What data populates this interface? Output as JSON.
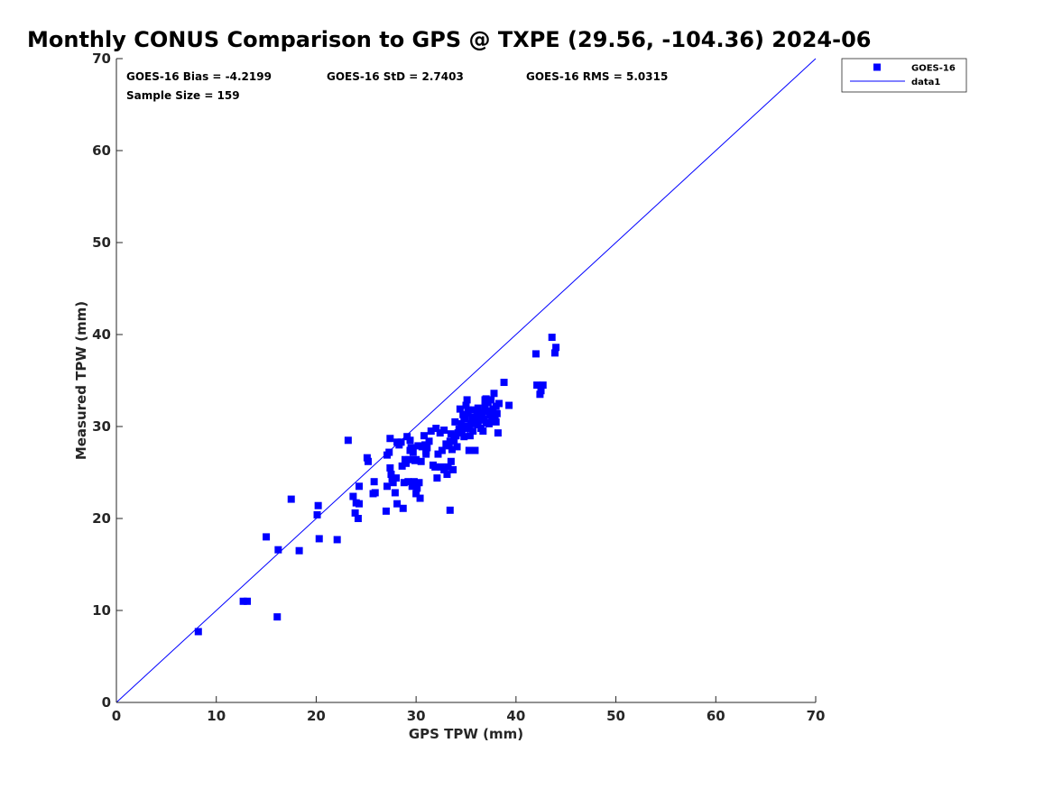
{
  "chart_data": {
    "type": "scatter",
    "title": "Monthly CONUS Comparison to GPS @ TXPE (29.56, -104.36) 2024-06",
    "xlabel": "GPS TPW (mm)",
    "ylabel": "Measured TPW (mm)",
    "xlim": [
      0,
      70
    ],
    "ylim": [
      0,
      70
    ],
    "xticks": [
      0,
      10,
      20,
      30,
      40,
      50,
      60,
      70
    ],
    "yticks": [
      0,
      10,
      20,
      30,
      40,
      50,
      60,
      70
    ],
    "grid": false,
    "legend_position": "top-right",
    "stats": [
      "GOES-16 Bias = -4.2199",
      "GOES-16 StD = 2.7403",
      "GOES-16 RMS = 5.0315",
      "Sample Size = 159"
    ],
    "series": [
      {
        "name": "GOES-16",
        "kind": "scatter",
        "marker": "square",
        "color": "#0000ff",
        "points": [
          [
            8.2,
            7.7
          ],
          [
            12.7,
            11.0
          ],
          [
            13.1,
            11.0
          ],
          [
            15.0,
            18.0
          ],
          [
            16.2,
            16.6
          ],
          [
            16.1,
            9.3
          ],
          [
            17.5,
            22.1
          ],
          [
            18.3,
            16.5
          ],
          [
            20.2,
            21.4
          ],
          [
            20.1,
            20.4
          ],
          [
            20.3,
            17.8
          ],
          [
            22.1,
            17.7
          ],
          [
            23.2,
            28.5
          ],
          [
            23.7,
            22.4
          ],
          [
            23.9,
            20.6
          ],
          [
            24.0,
            21.7
          ],
          [
            24.3,
            21.6
          ],
          [
            24.2,
            20.0
          ],
          [
            24.3,
            23.5
          ],
          [
            25.1,
            26.6
          ],
          [
            25.2,
            26.2
          ],
          [
            25.7,
            22.7
          ],
          [
            25.9,
            22.8
          ],
          [
            25.8,
            24.0
          ],
          [
            27.0,
            20.8
          ],
          [
            27.1,
            23.5
          ],
          [
            27.1,
            26.9
          ],
          [
            27.3,
            27.2
          ],
          [
            27.4,
            28.7
          ],
          [
            27.4,
            25.5
          ],
          [
            27.5,
            24.8
          ],
          [
            27.6,
            24.3
          ],
          [
            27.7,
            23.9
          ],
          [
            27.9,
            22.8
          ],
          [
            28.0,
            24.4
          ],
          [
            28.1,
            21.6
          ],
          [
            28.1,
            28.3
          ],
          [
            28.3,
            28.0
          ],
          [
            28.5,
            28.3
          ],
          [
            28.6,
            25.7
          ],
          [
            28.7,
            21.1
          ],
          [
            28.8,
            23.9
          ],
          [
            29.0,
            26.0
          ],
          [
            29.1,
            28.9
          ],
          [
            29.2,
            24.0
          ],
          [
            29.3,
            26.4
          ],
          [
            29.4,
            28.5
          ],
          [
            29.5,
            27.7
          ],
          [
            29.6,
            23.5
          ],
          [
            29.7,
            27.2
          ],
          [
            29.8,
            24.0
          ],
          [
            29.9,
            26.3
          ],
          [
            30.0,
            22.7
          ],
          [
            30.1,
            23.3
          ],
          [
            30.2,
            27.9
          ],
          [
            30.3,
            23.9
          ],
          [
            30.4,
            22.2
          ],
          [
            30.5,
            26.2
          ],
          [
            30.6,
            27.8
          ],
          [
            30.8,
            29.0
          ],
          [
            30.9,
            28.0
          ],
          [
            31.0,
            27.3
          ],
          [
            31.1,
            27.7
          ],
          [
            31.3,
            28.4
          ],
          [
            31.5,
            29.5
          ],
          [
            31.7,
            25.8
          ],
          [
            31.9,
            25.6
          ],
          [
            32.0,
            29.8
          ],
          [
            32.1,
            24.4
          ],
          [
            32.2,
            27.0
          ],
          [
            32.4,
            29.3
          ],
          [
            32.5,
            25.6
          ],
          [
            32.6,
            27.4
          ],
          [
            32.8,
            25.3
          ],
          [
            33.0,
            28.1
          ],
          [
            33.1,
            24.8
          ],
          [
            33.2,
            25.6
          ],
          [
            33.3,
            27.9
          ],
          [
            33.4,
            28.4
          ],
          [
            33.4,
            20.9
          ],
          [
            33.5,
            29.2
          ],
          [
            33.5,
            26.2
          ],
          [
            33.6,
            27.5
          ],
          [
            33.7,
            25.3
          ],
          [
            33.8,
            28.5
          ],
          [
            33.9,
            30.5
          ],
          [
            34.0,
            29.0
          ],
          [
            34.1,
            27.8
          ],
          [
            34.2,
            29.3
          ],
          [
            34.3,
            29.7
          ],
          [
            34.4,
            31.9
          ],
          [
            34.5,
            30.3
          ],
          [
            34.6,
            29.6
          ],
          [
            34.7,
            31.3
          ],
          [
            34.8,
            28.9
          ],
          [
            34.9,
            30.8
          ],
          [
            35.0,
            32.3
          ],
          [
            35.0,
            30.0
          ],
          [
            35.1,
            32.9
          ],
          [
            35.2,
            31.5
          ],
          [
            35.3,
            29.8
          ],
          [
            35.3,
            27.4
          ],
          [
            35.4,
            29.0
          ],
          [
            35.5,
            30.3
          ],
          [
            35.6,
            31.0
          ],
          [
            35.7,
            29.5
          ],
          [
            35.8,
            31.8
          ],
          [
            35.9,
            27.4
          ],
          [
            36.0,
            30.8
          ],
          [
            36.1,
            31.3
          ],
          [
            36.2,
            30.2
          ],
          [
            36.3,
            30.7
          ],
          [
            36.4,
            31.5
          ],
          [
            36.5,
            29.8
          ],
          [
            36.6,
            31.0
          ],
          [
            36.7,
            29.5
          ],
          [
            36.8,
            30.8
          ],
          [
            36.9,
            32.2
          ],
          [
            37.0,
            33.0
          ],
          [
            37.0,
            30.4
          ],
          [
            37.1,
            31.6
          ],
          [
            37.2,
            32.6
          ],
          [
            37.3,
            30.3
          ],
          [
            37.4,
            31.2
          ],
          [
            37.5,
            32.9
          ],
          [
            37.6,
            30.6
          ],
          [
            37.7,
            31.9
          ],
          [
            37.8,
            33.6
          ],
          [
            37.9,
            31.0
          ],
          [
            38.0,
            32.2
          ],
          [
            38.0,
            30.5
          ],
          [
            38.1,
            31.4
          ],
          [
            38.2,
            29.3
          ],
          [
            38.3,
            32.5
          ],
          [
            38.8,
            34.8
          ],
          [
            39.3,
            32.3
          ],
          [
            42.0,
            37.9
          ],
          [
            42.1,
            34.5
          ],
          [
            42.4,
            33.5
          ],
          [
            42.5,
            33.9
          ],
          [
            42.7,
            34.5
          ],
          [
            43.6,
            39.7
          ],
          [
            43.9,
            38.0
          ],
          [
            44.0,
            38.6
          ],
          [
            32.8,
            29.6
          ],
          [
            36.9,
            32.9
          ],
          [
            35.2,
            31.8
          ],
          [
            31.0,
            27.0
          ],
          [
            30.0,
            26.4
          ],
          [
            34.8,
            30.9
          ],
          [
            37.5,
            31.7
          ],
          [
            36.2,
            32.0
          ],
          [
            33.9,
            29.0
          ],
          [
            29.4,
            27.4
          ],
          [
            28.9,
            26.4
          ]
        ]
      },
      {
        "name": "data1",
        "kind": "line",
        "color": "#0000ff",
        "points": [
          [
            0,
            0
          ],
          [
            70,
            70
          ]
        ]
      }
    ]
  }
}
